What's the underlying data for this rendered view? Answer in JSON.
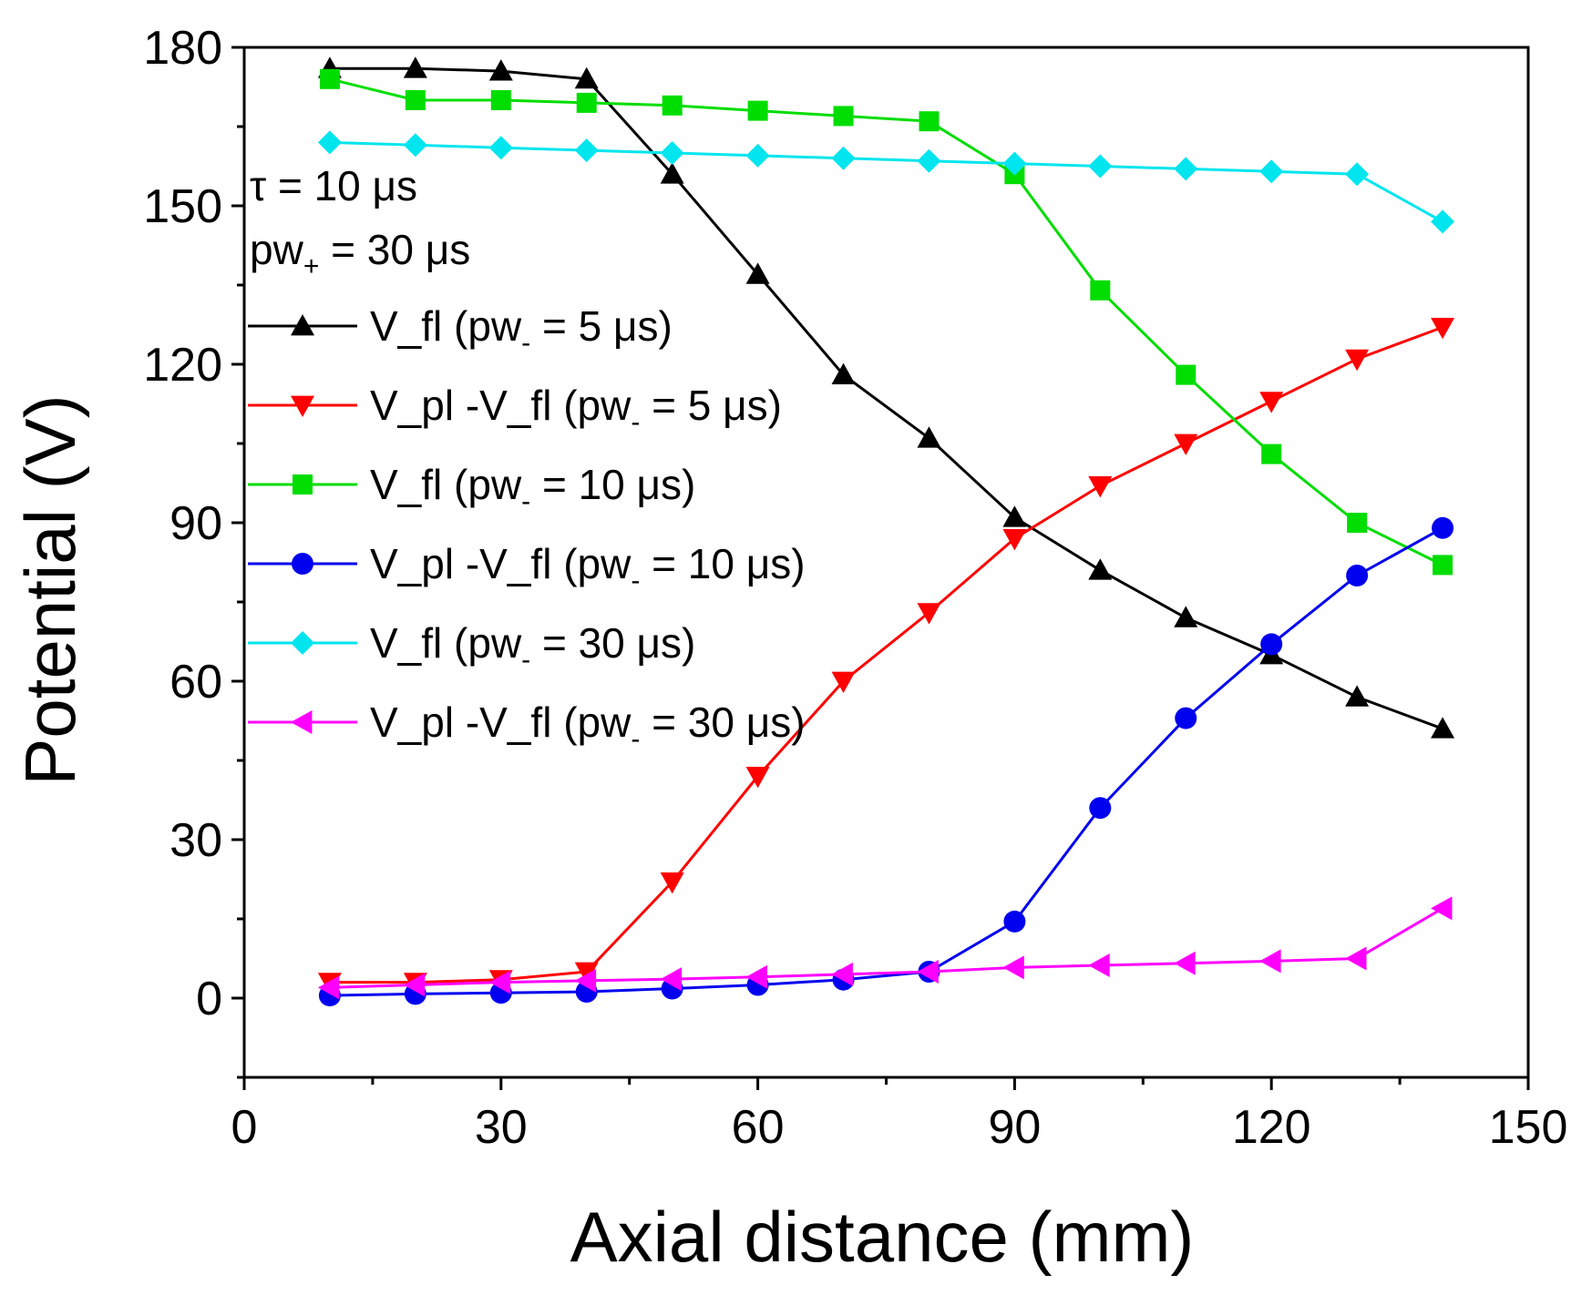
{
  "chart_data": {
    "type": "line",
    "title": "",
    "xlabel": "Axial distance (mm)",
    "ylabel": "Potential (V)",
    "xlim": [
      0,
      150
    ],
    "ylim": [
      -15,
      180
    ],
    "xticks": [
      0,
      30,
      60,
      90,
      120,
      150
    ],
    "yticks": [
      0,
      30,
      60,
      90,
      120,
      150,
      180
    ],
    "x": [
      10,
      20,
      30,
      40,
      50,
      60,
      70,
      80,
      90,
      100,
      110,
      120,
      130,
      140
    ],
    "annotations": [
      {
        "id": "tau",
        "prefix": "τ = 10 ",
        "unit": "μs"
      },
      {
        "id": "pw_plus",
        "base": "pw",
        "sub": "+",
        "rest": " = 30 ",
        "unit": "μs"
      }
    ],
    "legend_position": "left",
    "series": [
      {
        "name": "V_fl (pw- = 5 μs)",
        "label_main": "V_fl (pw",
        "label_sub": "-",
        "label_rest": " = 5 μs)",
        "color": "#000000",
        "marker": "triangle-up",
        "values": [
          176,
          176,
          175.5,
          174,
          156,
          137,
          118,
          106,
          91,
          81,
          72,
          65,
          57,
          51
        ]
      },
      {
        "name": "V_pl -V_fl (pw- = 5 μs)",
        "label_main": "V_pl -V_fl (pw",
        "label_sub": "-",
        "label_rest": " = 5 μs)",
        "color": "#ff0000",
        "marker": "triangle-down",
        "values": [
          3,
          3,
          3.5,
          5,
          22,
          42,
          60,
          73,
          87,
          97,
          105,
          113,
          121,
          127
        ]
      },
      {
        "name": "V_fl (pw- = 10 μs)",
        "label_main": "V_fl (pw",
        "label_sub": "-",
        "label_rest": " = 10 μs)",
        "color": "#00dd00",
        "marker": "square",
        "values": [
          174,
          170,
          170,
          169.5,
          169,
          168,
          167,
          166,
          156,
          134,
          118,
          103,
          90,
          82
        ]
      },
      {
        "name": "V_pl -V_fl (pw- = 10 μs)",
        "label_main": "V_pl -V_fl (pw",
        "label_sub": "-",
        "label_rest": " = 10 μs)",
        "color": "#0000ee",
        "marker": "circle",
        "values": [
          0.5,
          0.8,
          1,
          1.2,
          1.8,
          2.5,
          3.5,
          5,
          14.5,
          36,
          53,
          67,
          80,
          89
        ]
      },
      {
        "name": "V_fl (pw- = 30 μs)",
        "label_main": "V_fl (pw",
        "label_sub": "-",
        "label_rest": " = 30 μs)",
        "color": "#00e5ee",
        "marker": "diamond",
        "values": [
          162,
          161.5,
          161,
          160.5,
          160,
          159.5,
          159,
          158.5,
          158,
          157.5,
          157,
          156.5,
          156,
          147
        ]
      },
      {
        "name": "V_pl -V_fl (pw- = 30 μs)",
        "label_main": "V_pl -V_fl (pw",
        "label_sub": "-",
        "label_rest": " = 30 μs)",
        "color": "#ff00ff",
        "marker": "triangle-left",
        "values": [
          2,
          2.5,
          3,
          3.3,
          3.6,
          4,
          4.5,
          5,
          5.8,
          6.2,
          6.6,
          7,
          7.5,
          17
        ]
      }
    ]
  }
}
